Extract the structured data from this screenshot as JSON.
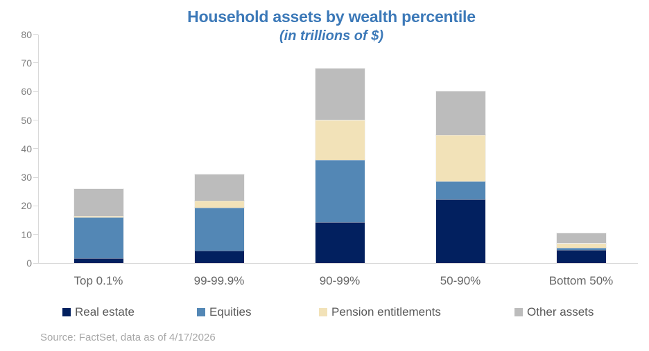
{
  "chart_data": {
    "type": "bar",
    "stacked": true,
    "title": "Household assets by wealth percentile",
    "subtitle": "(in trillions of $)",
    "source": "Source: FactSet, data as of 4/17/2026",
    "categories": [
      "Top 0.1%",
      "99-99.9%",
      "90-99%",
      "50-90%",
      "Bottom 50%"
    ],
    "series": [
      {
        "name": "Real estate",
        "color": "#02205f",
        "values": [
          1.8,
          4.3,
          14.3,
          22.2,
          4.7
        ]
      },
      {
        "name": "Equities",
        "color": "#5387b5",
        "values": [
          14.1,
          15.1,
          21.7,
          6.4,
          0.7
        ]
      },
      {
        "name": "Pension entitlements",
        "color": "#f2e2b8",
        "values": [
          0.6,
          2.5,
          14,
          16.3,
          1.5
        ]
      },
      {
        "name": "Other assets",
        "color": "#bcbcbc",
        "values": [
          9.4,
          9.2,
          18,
          15.1,
          3.6
        ]
      }
    ],
    "totals": [
      25.9,
      31.1,
      68,
      60,
      10.5
    ],
    "xlabel": "",
    "ylabel": "",
    "ylim": [
      0,
      80
    ],
    "ytick_step": 10,
    "ytick_labels": [
      "0",
      "10",
      "20",
      "30",
      "40",
      "50",
      "60",
      "70",
      "80"
    ],
    "grid": false,
    "legend_position": "bottom",
    "colors": {
      "title_text": "#3c79b8",
      "axis_line": "#d9d9d9",
      "ytick_label": "#7f7f7f",
      "category_label": "#666666",
      "legend_label": "#595959",
      "source_text": "#a8a8a8",
      "background": "#ffffff"
    }
  }
}
